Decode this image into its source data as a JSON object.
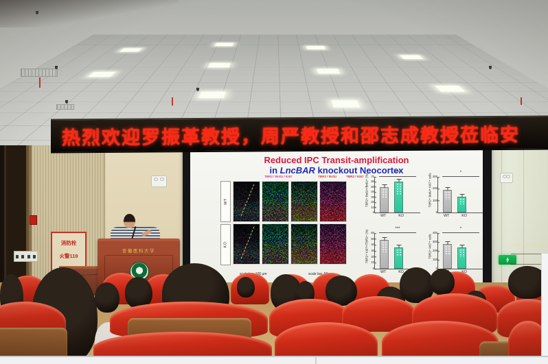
{
  "banner": {
    "text": "热烈欢迎罗振革教授，周严教授和邵志成教授莅临安"
  },
  "wall": {
    "fire_sign_line1": "消防栓",
    "fire_sign_line2": "火警119"
  },
  "podium": {
    "university_name": "安徽医科大学"
  },
  "slide": {
    "title_line1": "Reduced IPC Transit-amplification",
    "title_line2_prefix": "in ",
    "title_gene": "LncBAR",
    "title_line2_suffix": " knockout Neocortex",
    "micro": {
      "col_header1": "TBR2 / BrdU / Ki67",
      "col_header2": "TBR2 / BrdU",
      "col_header3": "TBR2 / Ki67",
      "row_label_wt": "WT",
      "row_label_ko": "KO",
      "scale_left": "scale bar, 100 μm",
      "scale_right": "scale bar, 50 μm"
    }
  },
  "chart_data": [
    {
      "type": "bar",
      "ylabel": "TBR2+ BrdU+/BrdU+ (%)",
      "categories": [
        "WT",
        "KO"
      ],
      "values": [
        50,
        60
      ],
      "yticks": [
        0,
        10,
        20,
        30,
        40,
        50,
        60,
        70
      ],
      "ylim": [
        0,
        70
      ],
      "significance": "***",
      "legend_position": "none",
      "grid": false
    },
    {
      "type": "bar",
      "ylabel": "TBR2+ BrdU+ Ki67+ cells",
      "categories": [
        "WT",
        "KO"
      ],
      "values": [
        190,
        130
      ],
      "yticks": [
        0,
        100,
        200,
        300
      ],
      "ylim": [
        0,
        300
      ],
      "significance": "*",
      "legend_position": "none",
      "grid": false
    },
    {
      "type": "bar",
      "ylabel": "TBR2+ Ki67+/TBR2+ (%)",
      "categories": [
        "WT",
        "KO"
      ],
      "values": [
        48,
        36
      ],
      "yticks": [
        0,
        10,
        20,
        30,
        40,
        50,
        60
      ],
      "ylim": [
        0,
        60
      ],
      "significance": "***",
      "legend_position": "none",
      "grid": false
    },
    {
      "type": "bar",
      "ylabel": "TBR2+ Ki67+ cells",
      "categories": [
        "WT",
        "KO"
      ],
      "values": [
        280,
        235
      ],
      "yticks": [
        0,
        100,
        200,
        300,
        400
      ],
      "ylim": [
        0,
        400
      ],
      "significance": "*",
      "legend_position": "none",
      "grid": false
    }
  ],
  "colors": {
    "banner-red": "#ff2817",
    "title-red": "#d8173c",
    "title-blue": "#1e2bb8",
    "wt-gray": "#b3b3b3",
    "ko-green": "#2bc79a",
    "chair-red": "#cf2a18",
    "wood-brown": "#7c4a22",
    "exit-green": "#12b04a"
  }
}
